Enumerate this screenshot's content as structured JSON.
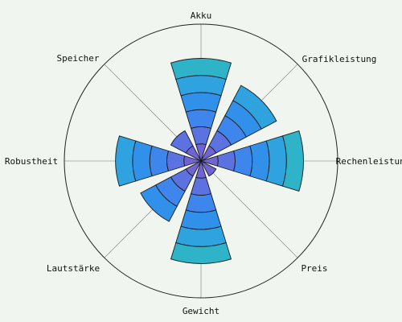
{
  "chart_data": {
    "type": "polar-stacked-bar",
    "title": "",
    "categories": [
      "Akku",
      "Grafikleistung",
      "Rechenleistung",
      "Preis",
      "Gewicht",
      "Lautstärke",
      "Robustheit",
      "Speicher"
    ],
    "ring_step": 1,
    "r_max": 8,
    "values": [
      6,
      5,
      6,
      1,
      6,
      4,
      5,
      2
    ],
    "grid": true,
    "colors": {
      "background": "#f0f5ef",
      "ring_colors": [
        "#6f63d6",
        "#5b72e0",
        "#3f86ec",
        "#3191ea",
        "#2ea3e0",
        "#2fb3c9",
        "#31bf98",
        "#7fc47f"
      ],
      "outline": "#1a1a1a",
      "grid": "#777777"
    }
  }
}
